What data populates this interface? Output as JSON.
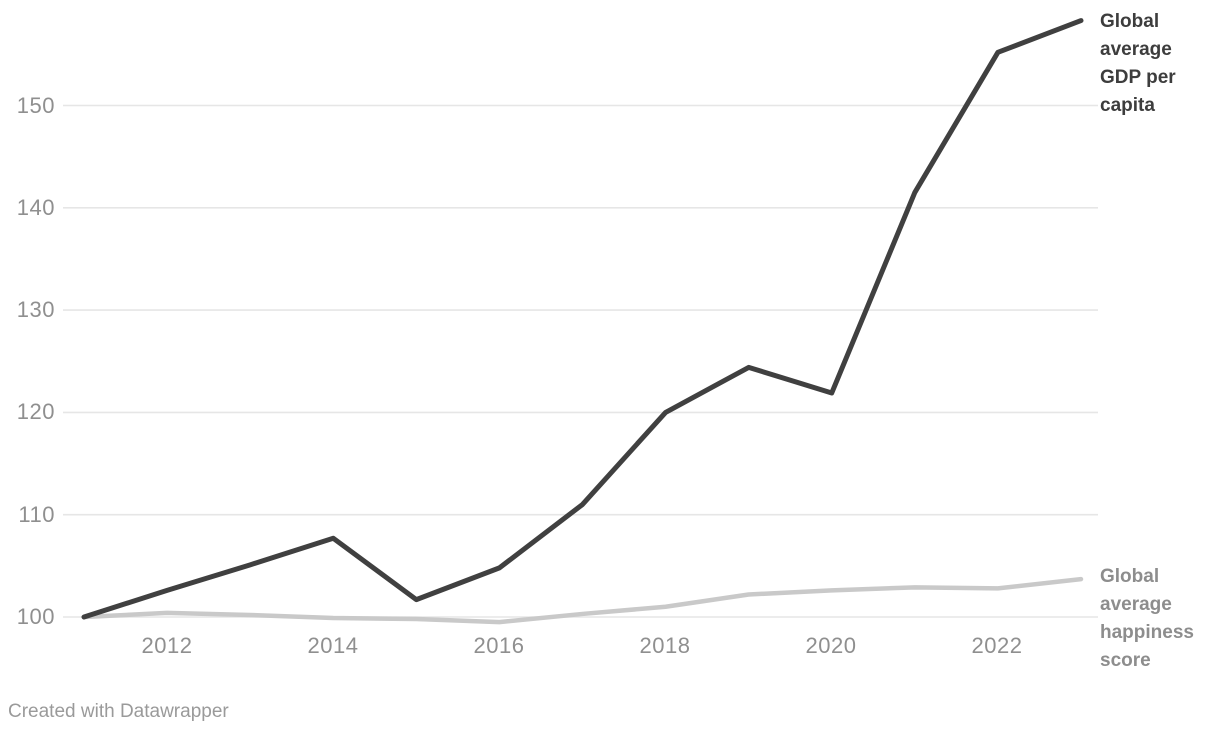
{
  "canvas": {
    "background": "#ffffff"
  },
  "footer": {
    "text": "Created with Datawrapper",
    "color": "#9a9a9a"
  },
  "chart_data": {
    "type": "line",
    "title": "",
    "x": [
      2011,
      2012,
      2013,
      2014,
      2015,
      2016,
      2017,
      2018,
      2019,
      2020,
      2021,
      2022,
      2023
    ],
    "x_tick_years": [
      2012,
      2014,
      2016,
      2018,
      2020,
      2022
    ],
    "x_tick_labels": [
      "2012",
      "2014",
      "2016",
      "2018",
      "2020",
      "2022"
    ],
    "y_ticks": [
      100,
      110,
      120,
      130,
      140,
      150
    ],
    "y_tick_labels": [
      "100",
      "110",
      "120",
      "130",
      "140",
      "150"
    ],
    "xlim": [
      2011,
      2023
    ],
    "ylim": [
      99.5,
      158.5
    ],
    "grid": "horizontal",
    "legend_position": "direct-labels-right",
    "axis_text_color": "#8f8f8f",
    "grid_color": "#e6e6e6",
    "xlabel": "",
    "ylabel": "",
    "series": [
      {
        "name": "Global average GDP per capita",
        "line_color": "#404040",
        "label_color": "#3d3d3d",
        "line_width": 5,
        "values": [
          100,
          102.6,
          105.1,
          107.7,
          101.7,
          104.8,
          111.0,
          120.0,
          124.4,
          121.9,
          141.5,
          155.2,
          158.3
        ]
      },
      {
        "name": "Global average happiness score",
        "line_color": "#c9c9c9",
        "label_color": "#8d8d8d",
        "line_width": 4.5,
        "values": [
          100,
          100.4,
          100.2,
          99.9,
          99.8,
          99.5,
          100.3,
          101.0,
          102.2,
          102.6,
          102.9,
          102.8,
          103.7
        ]
      }
    ]
  }
}
